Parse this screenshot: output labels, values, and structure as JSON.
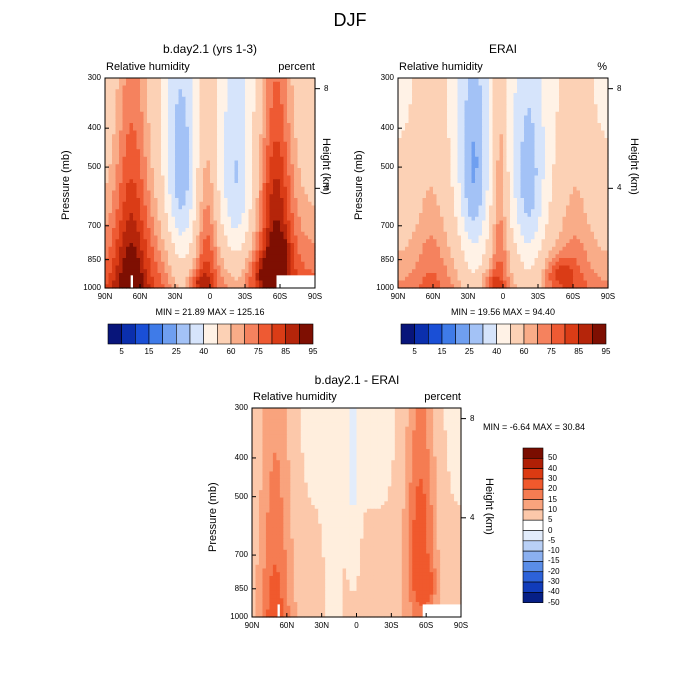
{
  "figure_title": "DJF",
  "colorbar_top_labels": [
    "5",
    "15",
    "25",
    "40",
    "60",
    "75",
    "85",
    "95"
  ],
  "colorbar_diff_labels": [
    "50",
    "40",
    "30",
    "20",
    "15",
    "10",
    "5",
    "0",
    "-5",
    "-10",
    "-15",
    "-20",
    "-30",
    "-40",
    "-50"
  ],
  "colors": {
    "abs_scale": [
      "#08157a",
      "#0b2fad",
      "#1a4fd6",
      "#3f7be8",
      "#6f9ff0",
      "#a3c2f6",
      "#d6e4fb",
      "#fff2e6",
      "#fcd1b5",
      "#f9ac88",
      "#f5825e",
      "#ee5a33",
      "#da3c16",
      "#b5250a",
      "#7e0f02"
    ],
    "diff_scale": [
      "#7a0d00",
      "#b01f05",
      "#dc3a12",
      "#f0592d",
      "#f57c52",
      "#f9a37d",
      "#fcc8aa",
      "#ffeedd",
      "#e2ecfb",
      "#b9d0f6",
      "#8bb0f0",
      "#5a8de8",
      "#2d62d9",
      "#113cba",
      "#061f86"
    ]
  },
  "chart_data": [
    {
      "type": "heatmap",
      "id": "model",
      "title": "b.day2.1 (yrs 1-3)",
      "left_label": "Relative humidity",
      "right_label": "percent",
      "xlabel": "",
      "ylabel": "Pressure (mb)",
      "y2label": "Height (km)",
      "x_ticks": [
        "90N",
        "60N",
        "30N",
        "0",
        "30S",
        "60S",
        "90S"
      ],
      "y_ticks": [
        "300",
        "400",
        "500",
        "700",
        "850",
        "1000"
      ],
      "y_tick_values": [
        300,
        400,
        500,
        700,
        850,
        1000
      ],
      "y2_ticks": [
        "8",
        "4"
      ],
      "y2_tick_values_km": [
        8,
        4
      ],
      "ylim": [
        1000,
        300
      ],
      "xlim": [
        90,
        -90
      ],
      "min_label": "MIN =  21.89  MAX = 125.16",
      "min": 21.89,
      "max": 125.16,
      "colorbar": "abs"
    },
    {
      "type": "heatmap",
      "id": "obs",
      "title": "ERAI",
      "left_label": "Relative humidity",
      "right_label": "%",
      "xlabel": "",
      "ylabel": "Pressure (mb)",
      "y2label": "Height (km)",
      "x_ticks": [
        "90N",
        "60N",
        "30N",
        "0",
        "30S",
        "60S",
        "90S"
      ],
      "y_ticks": [
        "300",
        "400",
        "500",
        "700",
        "850",
        "1000"
      ],
      "y_tick_values": [
        300,
        400,
        500,
        700,
        850,
        1000
      ],
      "y2_ticks": [
        "8",
        "4"
      ],
      "y2_tick_values_km": [
        8,
        4
      ],
      "ylim": [
        1000,
        300
      ],
      "xlim": [
        90,
        -90
      ],
      "min_label": "MIN =  19.56  MAX =  94.40",
      "min": 19.56,
      "max": 94.4,
      "colorbar": "abs"
    },
    {
      "type": "heatmap",
      "id": "diff",
      "title": "b.day2.1 - ERAI",
      "left_label": "Relative humidity",
      "right_label": "percent",
      "xlabel": "",
      "ylabel": "Pressure (mb)",
      "y2label": "Height (km)",
      "x_ticks": [
        "90N",
        "60N",
        "30N",
        "0",
        "30S",
        "60S",
        "90S"
      ],
      "y_ticks": [
        "300",
        "400",
        "500",
        "700",
        "850",
        "1000"
      ],
      "y_tick_values": [
        300,
        400,
        500,
        700,
        850,
        1000
      ],
      "y2_ticks": [
        "8",
        "4"
      ],
      "y2_tick_values_km": [
        8,
        4
      ],
      "ylim": [
        1000,
        300
      ],
      "xlim": [
        90,
        -90
      ],
      "min_label": "MIN =  -6.64  MAX =  30.84",
      "min": -6.64,
      "max": 30.84,
      "colorbar": "diff"
    }
  ]
}
